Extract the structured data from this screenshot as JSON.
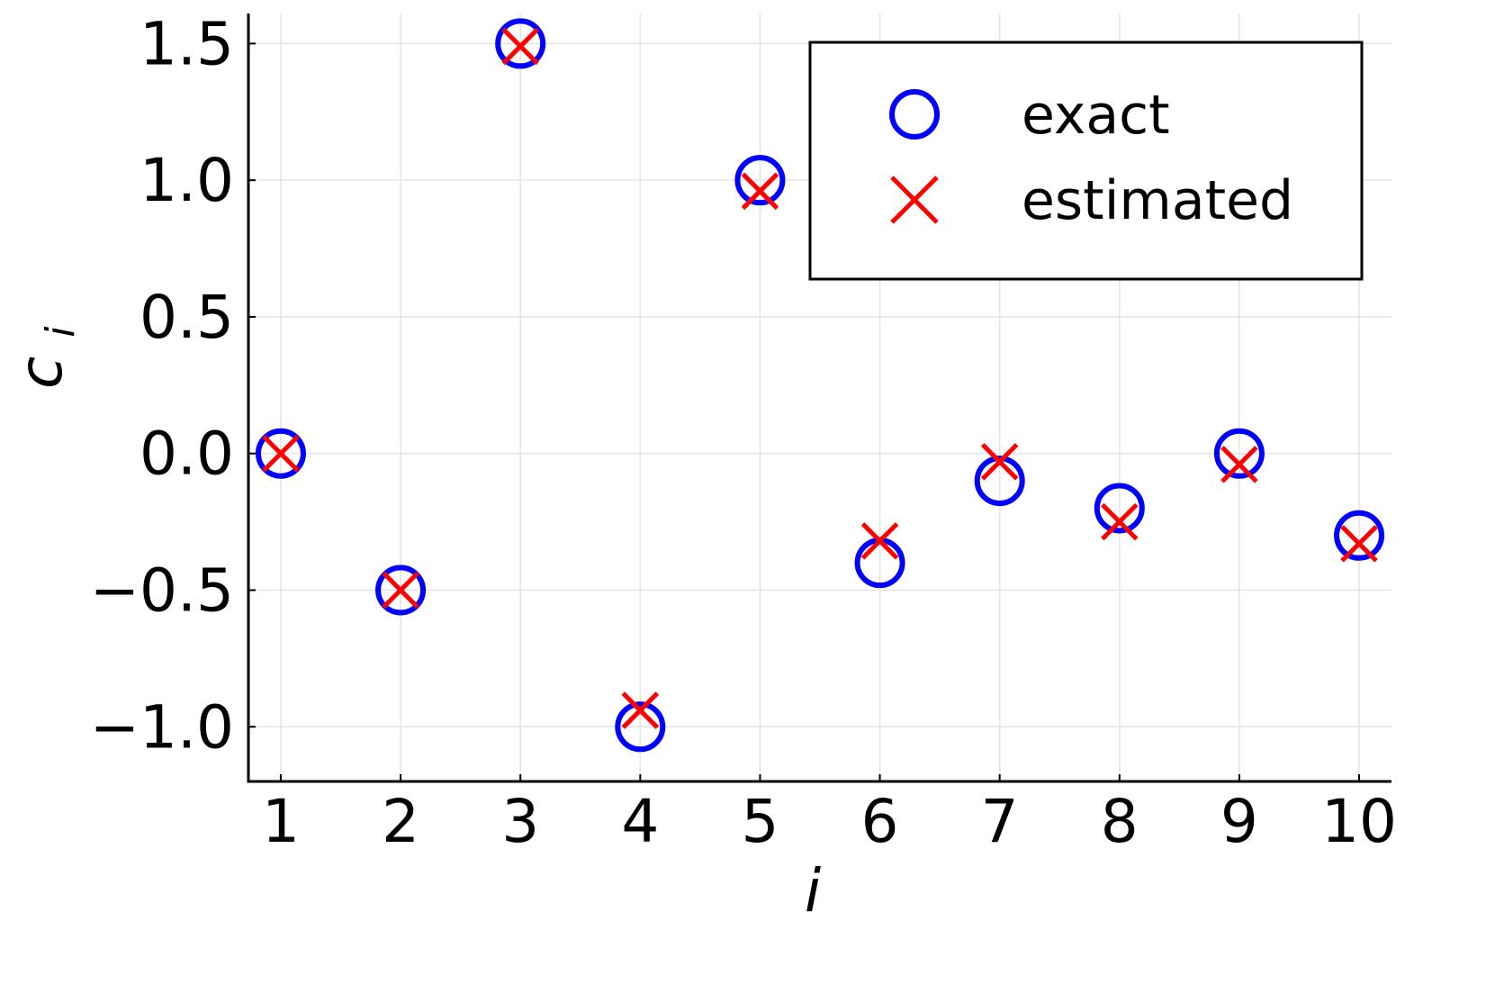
{
  "chart_data": {
    "type": "scatter",
    "title": "",
    "xlabel": "i",
    "ylabel_main": "c",
    "ylabel_sub": "i",
    "xlim": [
      0.73,
      10.27
    ],
    "ylim": [
      -1.2,
      1.61
    ],
    "x_ticks": [
      1,
      2,
      3,
      4,
      5,
      6,
      7,
      8,
      9,
      10
    ],
    "x_tick_labels": [
      "1",
      "2",
      "3",
      "4",
      "5",
      "6",
      "7",
      "8",
      "9",
      "10"
    ],
    "y_ticks": [
      -1.0,
      -0.5,
      0.0,
      0.5,
      1.0,
      1.5
    ],
    "y_tick_labels": [
      "−1.0",
      "−0.5",
      "0.0",
      "0.5",
      "1.0",
      "1.5"
    ],
    "grid": true,
    "legend_position": "top-right",
    "x": [
      1,
      2,
      3,
      4,
      5,
      6,
      7,
      8,
      9,
      10
    ],
    "series": [
      {
        "name": "exact",
        "marker": "circle-open",
        "color": "#0000ff",
        "values": [
          0.0,
          -0.5,
          1.5,
          -1.0,
          1.0,
          -0.4,
          -0.1,
          -0.2,
          0.0,
          -0.3
        ]
      },
      {
        "name": "estimated",
        "marker": "x",
        "color": "#ff0000",
        "values": [
          0.0,
          -0.5,
          1.49,
          -0.94,
          0.96,
          -0.32,
          -0.03,
          -0.25,
          -0.04,
          -0.33
        ]
      }
    ]
  }
}
